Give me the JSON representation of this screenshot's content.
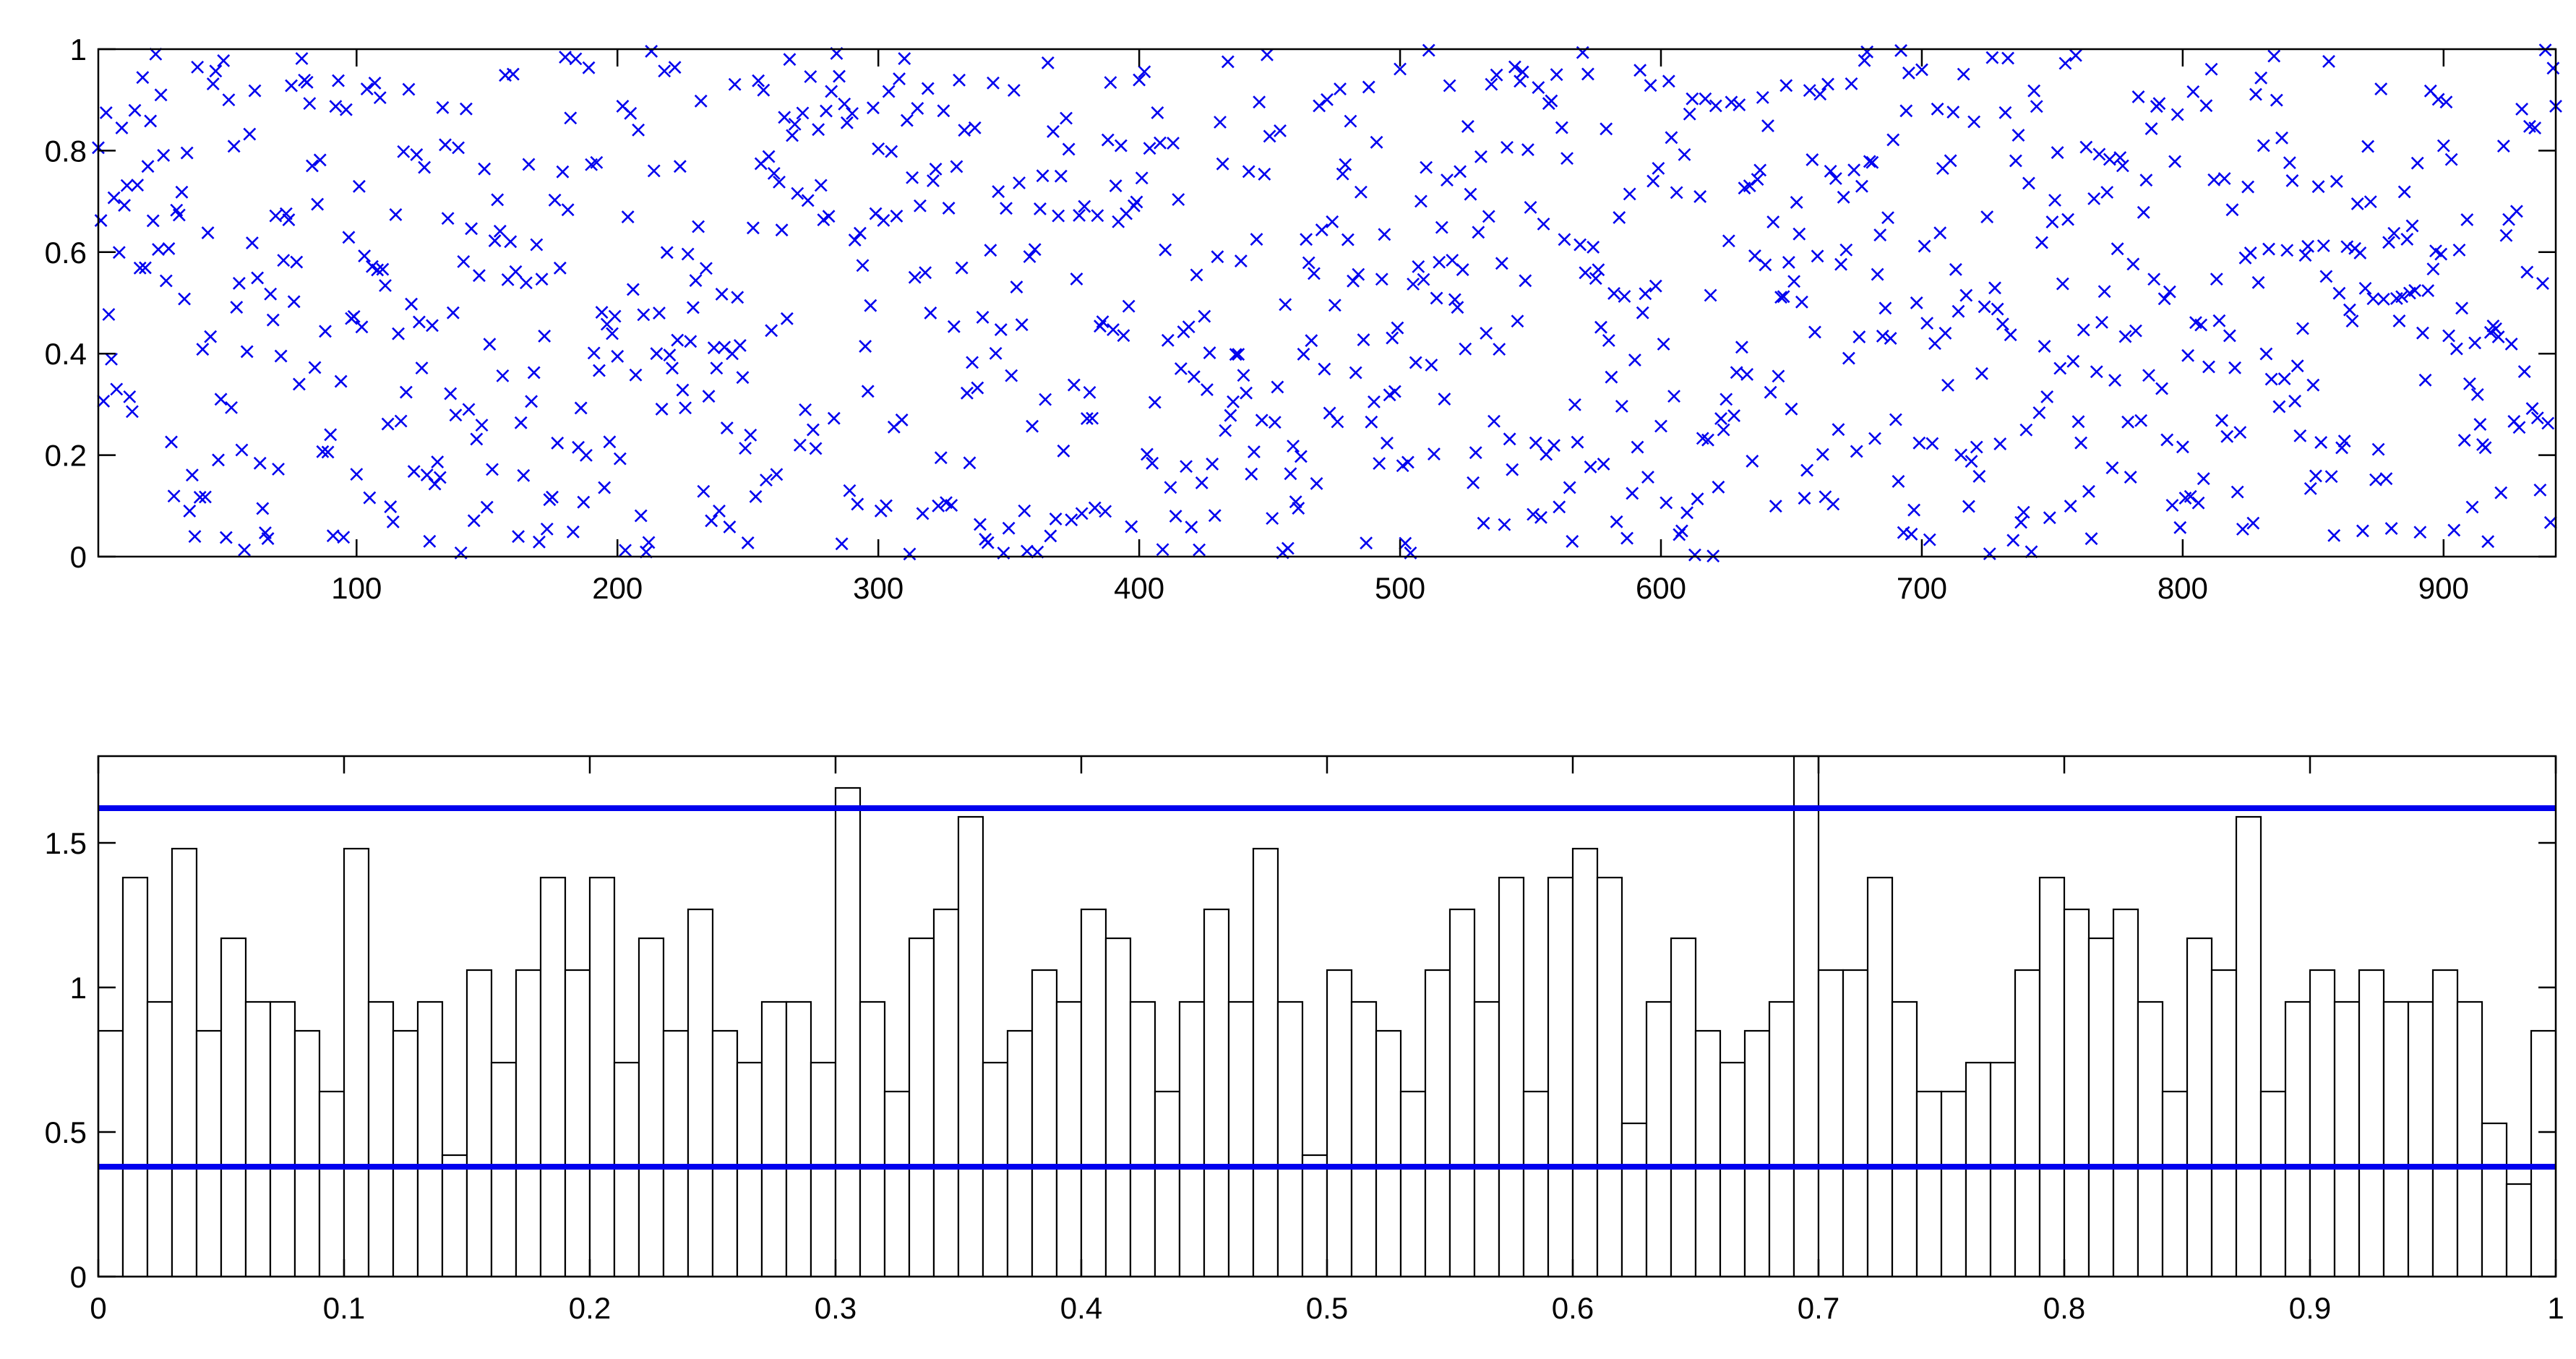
{
  "chart_data": [
    {
      "type": "scatter",
      "title": "",
      "xlabel": "",
      "ylabel": "",
      "marker": "x",
      "color": "#0000ee",
      "xlim": [
        1,
        943
      ],
      "ylim": [
        0,
        1
      ],
      "xticks": [
        "100",
        "200",
        "300",
        "400",
        "500",
        "600",
        "700",
        "800",
        "900"
      ],
      "yticks": [
        "0",
        "0.2",
        "0.4",
        "0.6",
        "0.8",
        "1"
      ],
      "n_points": 943,
      "distribution": "uniform",
      "seed": 20240517
    },
    {
      "type": "bar",
      "title": "",
      "xlabel": "",
      "ylabel": "",
      "xlim": [
        0,
        1
      ],
      "ylim": [
        0,
        1.8
      ],
      "xticks": [
        "0",
        "0.1",
        "0.2",
        "0.3",
        "0.4",
        "0.5",
        "0.6",
        "0.7",
        "0.8",
        "0.9",
        "1"
      ],
      "yticks": [
        "0",
        "0.5",
        "1",
        "1.5"
      ],
      "bin_width": 0.01,
      "bar_edge_color": "#000000",
      "bar_fill_color": "#ffffff",
      "values": [
        0.85,
        1.38,
        0.95,
        1.48,
        0.85,
        1.17,
        0.95,
        0.95,
        0.85,
        0.64,
        1.48,
        0.95,
        0.85,
        0.95,
        0.42,
        1.06,
        0.74,
        1.06,
        1.38,
        1.06,
        1.38,
        0.74,
        1.17,
        0.85,
        1.27,
        0.85,
        0.74,
        0.95,
        0.95,
        0.74,
        1.69,
        0.95,
        0.64,
        1.17,
        1.27,
        1.59,
        0.74,
        0.85,
        1.06,
        0.95,
        1.27,
        1.17,
        0.95,
        0.64,
        0.95,
        1.27,
        0.95,
        1.48,
        0.95,
        0.42,
        1.06,
        0.95,
        0.85,
        0.64,
        1.06,
        1.27,
        0.95,
        1.38,
        0.64,
        1.38,
        1.48,
        1.38,
        0.53,
        0.95,
        1.17,
        0.85,
        0.74,
        0.85,
        0.95,
        1.8,
        1.06,
        1.06,
        1.38,
        0.95,
        0.64,
        0.64,
        0.74,
        0.74,
        1.06,
        1.38,
        1.27,
        1.17,
        1.27,
        0.95,
        0.64,
        1.17,
        1.06,
        1.59,
        0.64,
        0.95,
        1.06,
        0.95,
        1.06,
        0.95,
        0.95,
        1.06,
        0.95,
        0.53,
        0.32,
        0.85
      ],
      "threshold_lines": {
        "color": "#0000ee",
        "values": [
          1.62,
          0.38
        ]
      }
    }
  ]
}
